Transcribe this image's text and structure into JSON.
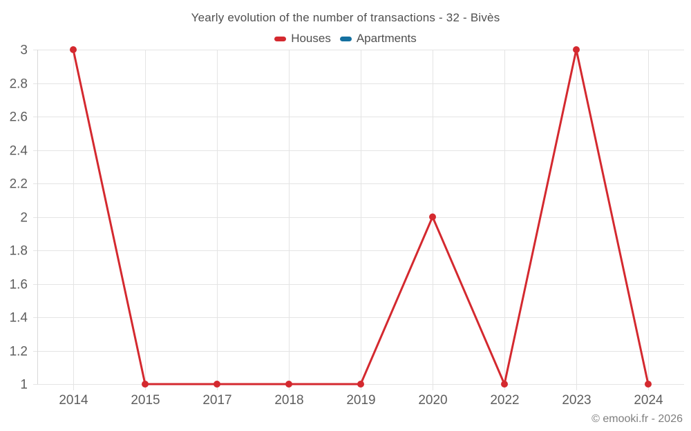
{
  "header": {
    "title": "Yearly evolution of the number of transactions - 32 - Bivès"
  },
  "footer": {
    "copyright": "© emooki.fr - 2026"
  },
  "chart_data": {
    "type": "line",
    "title": "Yearly evolution of the number of transactions - 32 - Bivès",
    "categories": [
      "2014",
      "2015",
      "2017",
      "2018",
      "2019",
      "2020",
      "2022",
      "2023",
      "2024"
    ],
    "series": [
      {
        "name": "Houses",
        "color": "#d4292f",
        "values": [
          3,
          1,
          1,
          1,
          1,
          2,
          1,
          3,
          1
        ]
      },
      {
        "name": "Apartments",
        "color": "#1470a0",
        "values": []
      }
    ],
    "xlabel": "",
    "ylabel": "",
    "ylim": [
      1,
      3
    ],
    "yticks": [
      "3",
      "2.8",
      "2.6",
      "2.4",
      "2.2",
      "2",
      "1.8",
      "1.6",
      "1.4",
      "1.2",
      "1"
    ],
    "grid": true,
    "legend_position": "top",
    "colors": {
      "grid": "#e4e4e4",
      "axis": "#d9d9d9",
      "axis_label": "#5d5d5d"
    }
  }
}
